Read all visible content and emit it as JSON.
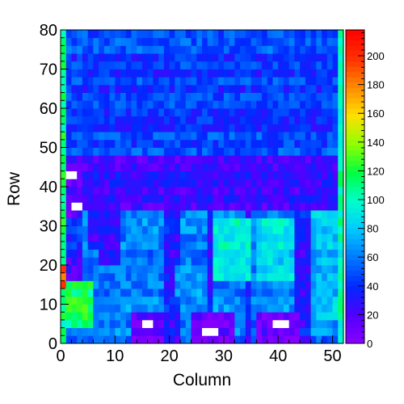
{
  "chart_data": {
    "type": "heatmap",
    "title": "",
    "xlabel": "Column",
    "ylabel": "Row",
    "xlim": [
      0,
      52
    ],
    "ylim": [
      0,
      80
    ],
    "zlim": [
      0,
      218
    ],
    "x_ticks": [
      "0",
      "10",
      "20",
      "30",
      "40",
      "50"
    ],
    "y_ticks": [
      "0",
      "10",
      "20",
      "30",
      "40",
      "50",
      "60",
      "70",
      "80"
    ],
    "colorbar_ticks": [
      "0",
      "20",
      "40",
      "60",
      "80",
      "100",
      "120",
      "140",
      "160",
      "180",
      "200"
    ],
    "colormap": "rainbow",
    "palette": [
      "#ffffff",
      "#8a00ff",
      "#5000ff",
      "#0028ff",
      "#0078ff",
      "#00c8ff",
      "#00ffcc",
      "#00ff40",
      "#90ff00",
      "#ffe000",
      "#ff8a00",
      "#ff3000",
      "#ff0000"
    ],
    "grid": false,
    "legend": "colorbar-right",
    "bin_size": [
      1,
      2
    ],
    "regions": [
      {
        "x": [
          0,
          1
        ],
        "y": [
          0,
          80
        ],
        "value": 110
      },
      {
        "x": [
          51,
          52
        ],
        "y": [
          0,
          80
        ],
        "value": 100
      },
      {
        "x": [
          1,
          51
        ],
        "y": [
          48,
          80
        ],
        "value": 45
      },
      {
        "x": [
          1,
          51
        ],
        "y": [
          34,
          48
        ],
        "value": 22
      },
      {
        "x": [
          1,
          51
        ],
        "y": [
          0,
          34
        ],
        "value": 60
      },
      {
        "x": [
          1,
          4
        ],
        "y": [
          22,
          34
        ],
        "value": 40
      },
      {
        "x": [
          1,
          4
        ],
        "y": [
          16,
          22
        ],
        "value": 22
      },
      {
        "x": [
          0,
          1
        ],
        "y": [
          14,
          20
        ],
        "value": 190
      },
      {
        "x": [
          1,
          6
        ],
        "y": [
          4,
          16
        ],
        "value": 115
      },
      {
        "x": [
          5,
          11
        ],
        "y": [
          24,
          34
        ],
        "value": 25
      },
      {
        "x": [
          7,
          11
        ],
        "y": [
          20,
          24
        ],
        "value": 30
      },
      {
        "x": [
          19,
          22
        ],
        "y": [
          0,
          34
        ],
        "value": 30
      },
      {
        "x": [
          27,
          28
        ],
        "y": [
          0,
          34
        ],
        "value": 28
      },
      {
        "x": [
          34,
          35
        ],
        "y": [
          0,
          34
        ],
        "value": 30
      },
      {
        "x": [
          43,
          46
        ],
        "y": [
          0,
          34
        ],
        "value": 30
      },
      {
        "x": [
          28,
          35
        ],
        "y": [
          16,
          32
        ],
        "value": 90
      },
      {
        "x": [
          36,
          43
        ],
        "y": [
          16,
          32
        ],
        "value": 85
      },
      {
        "x": [
          46,
          51
        ],
        "y": [
          6,
          34
        ],
        "value": 75
      },
      {
        "x": [
          21,
          26
        ],
        "y": [
          12,
          20
        ],
        "value": 70
      },
      {
        "x": [
          13,
          19
        ],
        "y": [
          0,
          8
        ],
        "value": 8
      },
      {
        "x": [
          24,
          32
        ],
        "y": [
          0,
          8
        ],
        "value": 8
      },
      {
        "x": [
          36,
          44
        ],
        "y": [
          0,
          8
        ],
        "value": 8
      },
      {
        "x": [
          1,
          4
        ],
        "y": [
          40,
          46
        ],
        "value": 10
      },
      {
        "x": [
          1,
          4
        ],
        "y": [
          32,
          38
        ],
        "value": 10
      },
      {
        "x": [
          1,
          3
        ],
        "y": [
          42,
          44
        ],
        "value": 230
      },
      {
        "x": [
          2,
          4
        ],
        "y": [
          34,
          36
        ],
        "value": 230
      },
      {
        "x": [
          15,
          17
        ],
        "y": [
          4,
          6
        ],
        "value": 230
      },
      {
        "x": [
          26,
          29
        ],
        "y": [
          2,
          4
        ],
        "value": 230
      },
      {
        "x": [
          39,
          42
        ],
        "y": [
          4,
          6
        ],
        "value": 230
      }
    ]
  }
}
